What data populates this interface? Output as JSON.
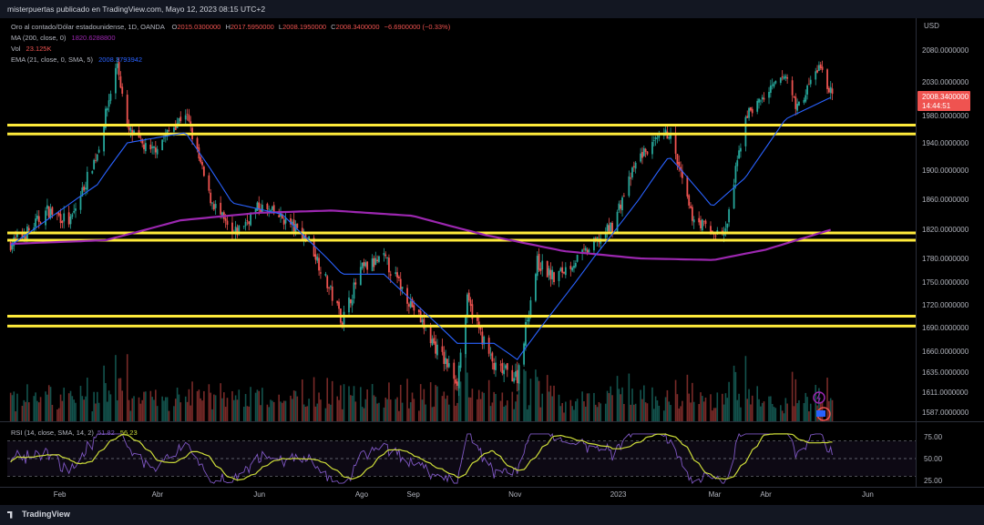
{
  "header": {
    "published_by": "misterpuertas publicado en TradingView.com, Mayo 12, 2023 08:15 UTC+2"
  },
  "legend": {
    "instrument": "Oro al contado/Dólar estadounidense, 1D, OANDA",
    "o_label": "O",
    "o_value": "2015.0300000",
    "h_label": "H",
    "h_value": "2017.5950000",
    "l_label": "L",
    "l_value": "2008.1950000",
    "c_label": "C",
    "c_value": "2008.3400000",
    "change": "−6.6900000 (−0.33%)",
    "ma_label": "MA (200, close, 0)",
    "ma_value": "1820.6288800",
    "vol_label": "Vol",
    "vol_value": "23.125K",
    "ema_label": "EMA (21, close, 0, SMA, 5)",
    "ema_value": "2008.3793942",
    "rsi_label": "RSI (14, close, SMA, 14, 2)",
    "rsi_value": "51.82",
    "rsi_ma_value": "56.23"
  },
  "price_tag": {
    "price": "2008.3400000",
    "countdown": "14:44:51"
  },
  "footer": {
    "brand": "TradingView"
  },
  "colors": {
    "up": "#26a69a",
    "down": "#ef5350",
    "ema": "#2962ff",
    "ma": "#9c27b0",
    "zone": "#ffeb3b",
    "rsi": "#7e57c2",
    "rsi_ma": "#cddc39"
  },
  "chart_data": {
    "type": "candlestick",
    "currency": "USD",
    "y_ticks": [
      "2080.0000000",
      "2030.0000000",
      "1980.0000000",
      "1940.0000000",
      "1900.0000000",
      "1860.0000000",
      "1820.0000000",
      "1780.0000000",
      "1750.0000000",
      "1720.0000000",
      "1690.0000000",
      "1660.0000000",
      "1635.0000000",
      "1611.0000000",
      "1587.0000000"
    ],
    "x_ticks": [
      "Feb",
      "Abr",
      "Jun",
      "Ago",
      "Sep",
      "Nov",
      "2023",
      "Mar",
      "Abr",
      "Jun"
    ],
    "support_resistance_zones": [
      [
        1953,
        1966
      ],
      [
        1805,
        1815
      ],
      [
        1692,
        1705
      ]
    ],
    "close_path": [
      [
        "2022-01-03",
        1800
      ],
      [
        "2022-01-14",
        1818
      ],
      [
        "2022-01-25",
        1845
      ],
      [
        "2022-02-08",
        1830
      ],
      [
        "2022-02-24",
        1925
      ],
      [
        "2022-03-08",
        2060
      ],
      [
        "2022-03-14",
        1960
      ],
      [
        "2022-03-28",
        1925
      ],
      [
        "2022-04-18",
        1985
      ],
      [
        "2022-05-02",
        1865
      ],
      [
        "2022-05-16",
        1810
      ],
      [
        "2022-06-01",
        1850
      ],
      [
        "2022-06-15",
        1835
      ],
      [
        "2022-07-01",
        1805
      ],
      [
        "2022-07-21",
        1700
      ],
      [
        "2022-08-01",
        1765
      ],
      [
        "2022-08-15",
        1780
      ],
      [
        "2022-08-29",
        1730
      ],
      [
        "2022-09-15",
        1665
      ],
      [
        "2022-09-28",
        1625
      ],
      [
        "2022-10-04",
        1725
      ],
      [
        "2022-10-20",
        1640
      ],
      [
        "2022-11-03",
        1630
      ],
      [
        "2022-11-15",
        1775
      ],
      [
        "2022-11-25",
        1755
      ],
      [
        "2022-12-15",
        1790
      ],
      [
        "2022-12-30",
        1825
      ],
      [
        "2023-01-15",
        1920
      ],
      [
        "2023-02-02",
        1955
      ],
      [
        "2023-02-15",
        1840
      ],
      [
        "2023-02-28",
        1815
      ],
      [
        "2023-03-08",
        1815
      ],
      [
        "2023-03-20",
        1980
      ],
      [
        "2023-04-05",
        2020
      ],
      [
        "2023-04-13",
        2040
      ],
      [
        "2023-04-20",
        1990
      ],
      [
        "2023-05-03",
        2055
      ],
      [
        "2023-05-11",
        2008
      ]
    ],
    "ema21_path": [
      [
        "2022-01-03",
        1798
      ],
      [
        "2022-02-24",
        1880
      ],
      [
        "2022-03-14",
        1940
      ],
      [
        "2022-04-18",
        1955
      ],
      [
        "2022-05-16",
        1855
      ],
      [
        "2022-06-15",
        1840
      ],
      [
        "2022-07-21",
        1760
      ],
      [
        "2022-08-15",
        1760
      ],
      [
        "2022-09-28",
        1670
      ],
      [
        "2022-10-20",
        1670
      ],
      [
        "2022-11-03",
        1650
      ],
      [
        "2022-12-15",
        1770
      ],
      [
        "2023-01-15",
        1860
      ],
      [
        "2023-02-02",
        1920
      ],
      [
        "2023-02-28",
        1850
      ],
      [
        "2023-03-20",
        1890
      ],
      [
        "2023-04-13",
        1975
      ],
      [
        "2023-05-11",
        2008
      ]
    ],
    "ma200_path": [
      [
        "2022-01-03",
        1800
      ],
      [
        "2022-03-01",
        1805
      ],
      [
        "2022-04-15",
        1832
      ],
      [
        "2022-06-01",
        1842
      ],
      [
        "2022-07-15",
        1845
      ],
      [
        "2022-09-01",
        1838
      ],
      [
        "2022-10-15",
        1812
      ],
      [
        "2022-12-01",
        1790
      ],
      [
        "2023-01-15",
        1780
      ],
      [
        "2023-03-01",
        1778
      ],
      [
        "2023-04-01",
        1792
      ],
      [
        "2023-05-11",
        1820
      ]
    ],
    "rsi_levels": [
      70,
      50,
      30
    ],
    "rsi_ticks": [
      "75.00",
      "50.00",
      "25.00"
    ]
  }
}
